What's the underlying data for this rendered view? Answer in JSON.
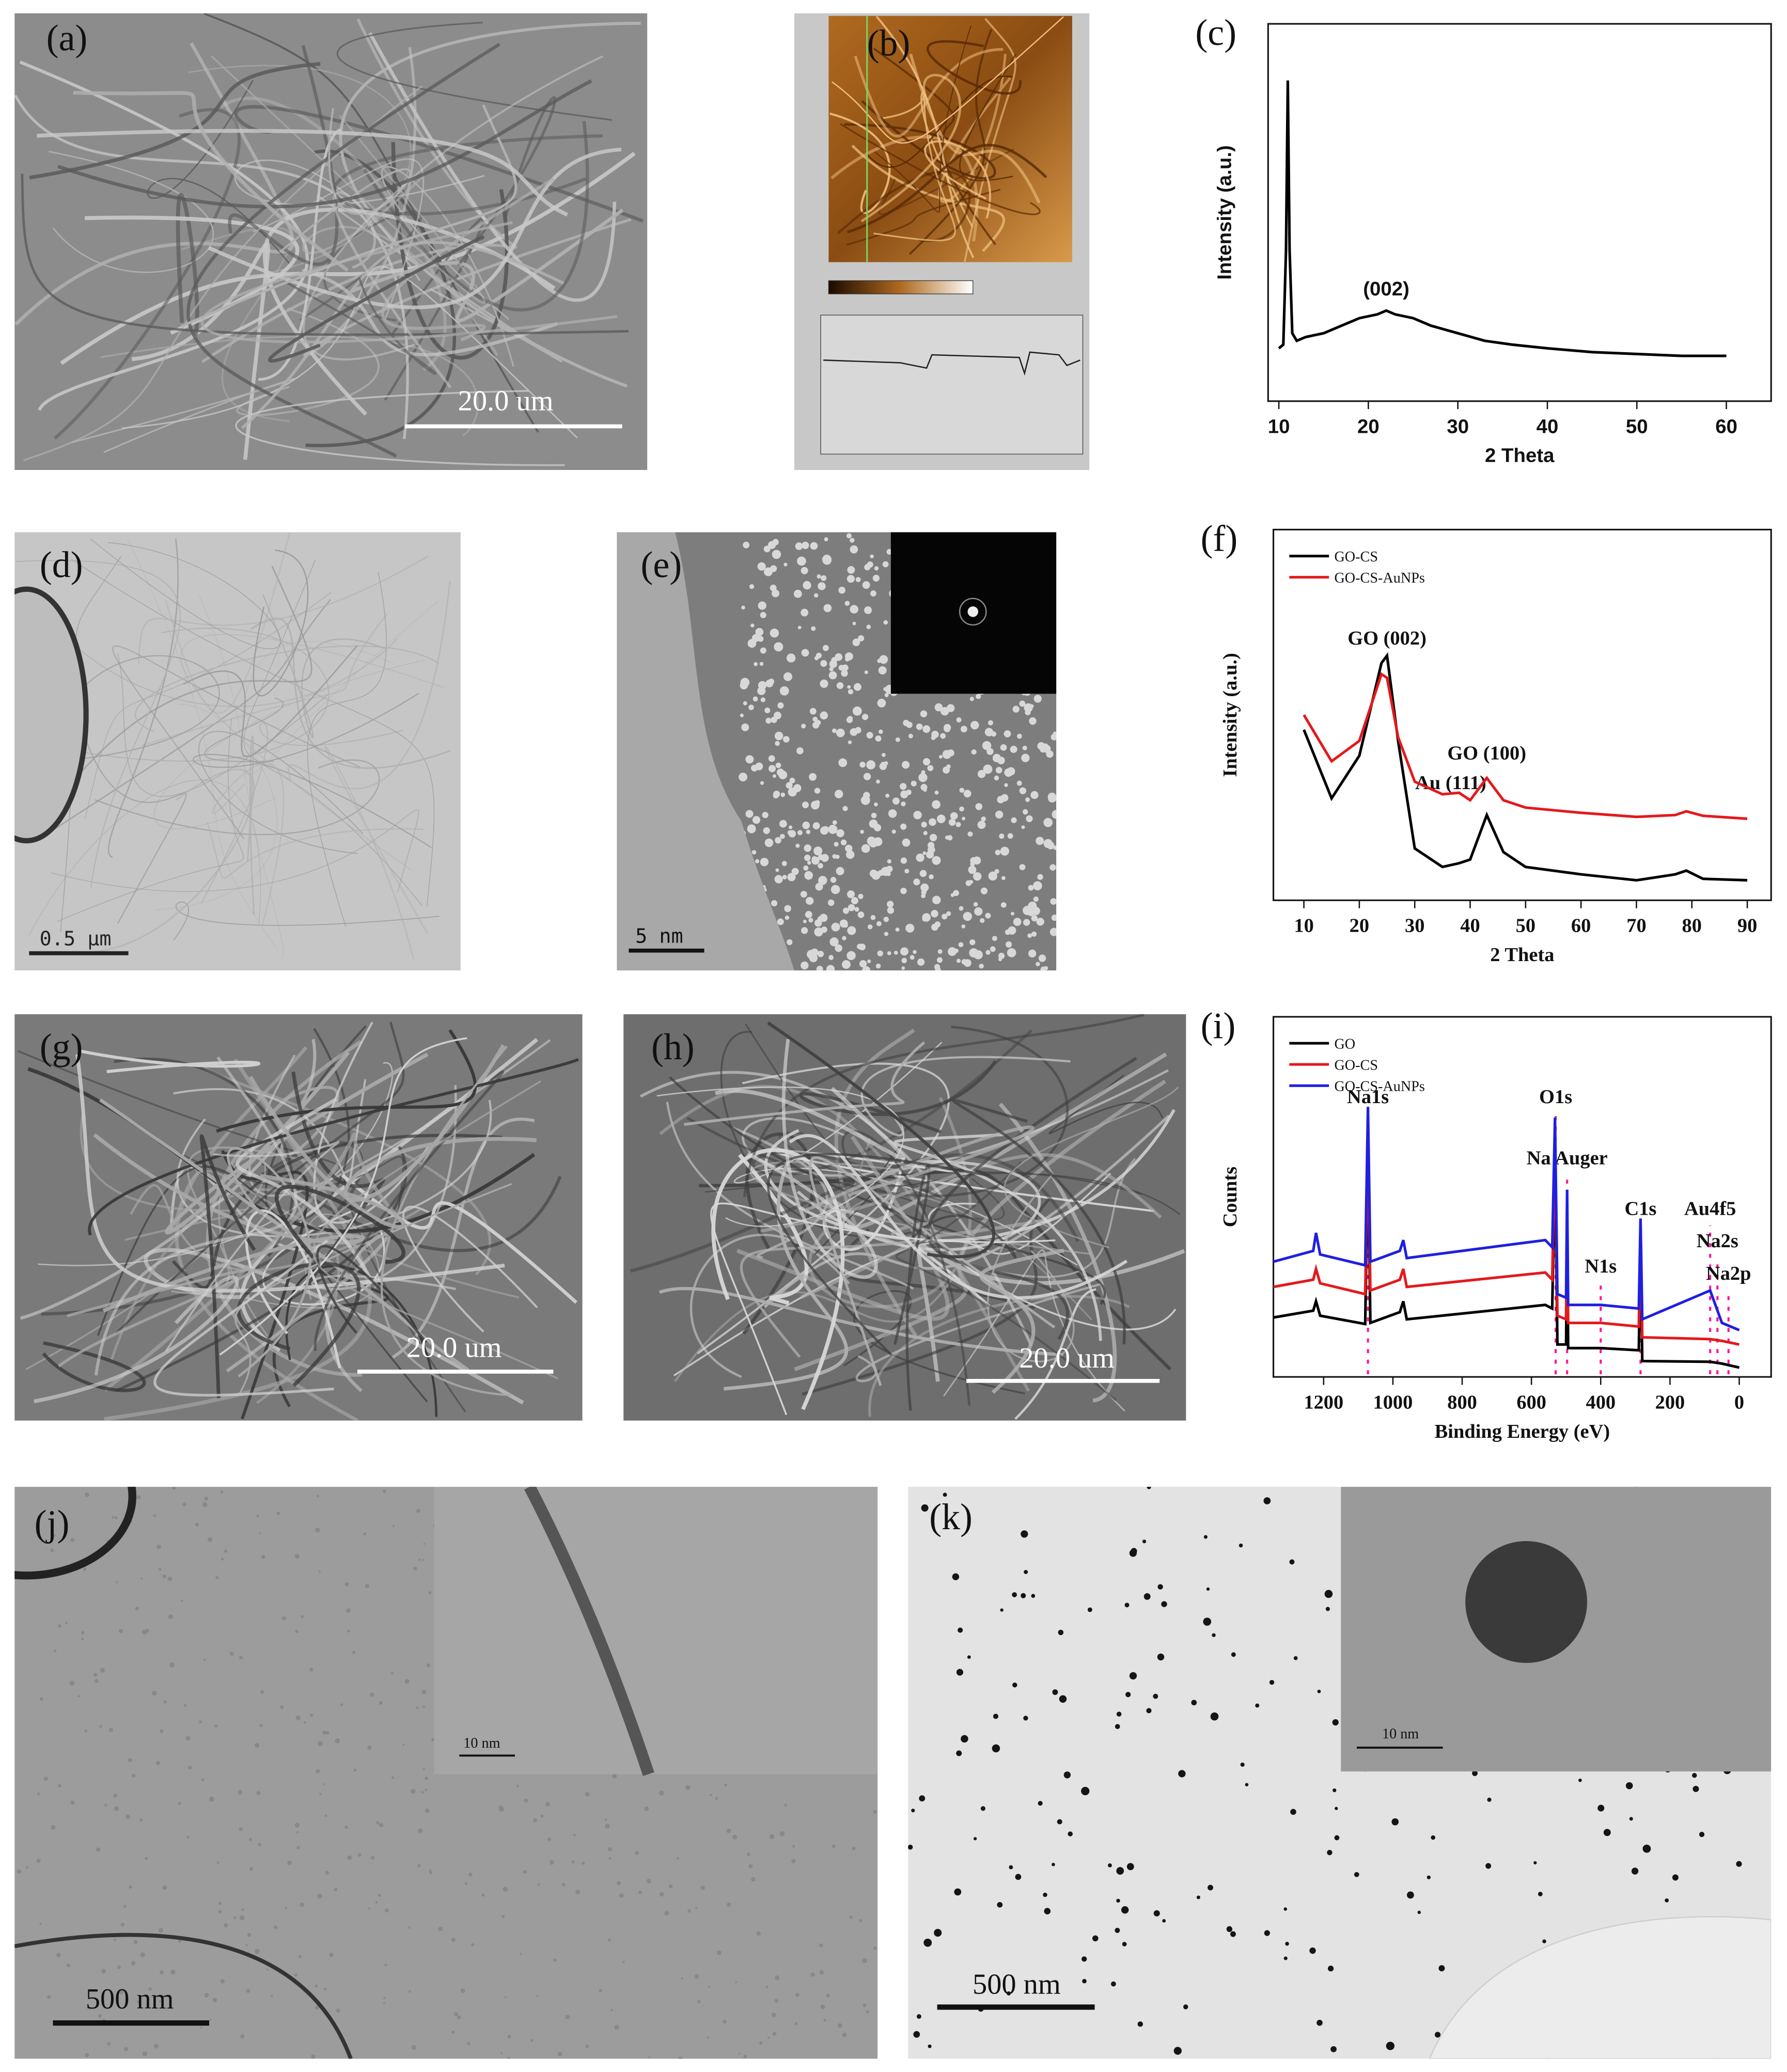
{
  "panels": {
    "a": {
      "label": "(a)",
      "scale_bar": "20.0 um"
    },
    "b": {
      "label": "(b)"
    },
    "d": {
      "label": "(d)",
      "scale_bar": "0.5 μm"
    },
    "e": {
      "label": "(e)",
      "scale_bar": "5 nm"
    },
    "g": {
      "label": "(g)",
      "scale_bar": "20.0 um"
    },
    "h": {
      "label": "(h)",
      "scale_bar": "20.0 um"
    },
    "j": {
      "label": "(j)",
      "scale_bar": "500 nm",
      "inset_scale_bar": "10 nm"
    },
    "k": {
      "label": "(k)",
      "scale_bar": "500 nm",
      "inset_scale_bar": "10 nm"
    }
  },
  "chart_data": [
    {
      "type": "line",
      "label": "(c)",
      "xlabel": "2 Theta",
      "ylabel": "Intensity (a.u.)",
      "color": "#000000",
      "x": [
        10,
        10.5,
        10.8,
        11,
        11.2,
        11.5,
        12,
        13,
        15,
        17,
        19,
        21,
        22,
        23,
        25,
        27,
        30,
        33,
        36,
        40,
        45,
        50,
        55,
        60
      ],
      "values": [
        14,
        15,
        40,
        85,
        40,
        18,
        16,
        17,
        18,
        20,
        22,
        23,
        24,
        23,
        22,
        20,
        18,
        16,
        15,
        14,
        13,
        12.5,
        12,
        12
      ],
      "xlim": [
        8.8,
        65
      ],
      "ylim": [
        0,
        100
      ],
      "xticks": [
        10,
        20,
        30,
        40,
        50,
        60
      ],
      "annotations": [
        {
          "text": "(002)",
          "x": 22,
          "y": 28
        }
      ]
    },
    {
      "type": "line",
      "label": "(f)",
      "xlabel": "2 Theta",
      "ylabel": "Intensity (a.u.)",
      "legend": "upper left",
      "x": [
        10,
        15,
        20,
        24,
        25,
        27,
        30,
        35,
        38,
        40,
        43,
        46,
        50,
        60,
        70,
        77,
        79,
        82,
        90
      ],
      "series": [
        {
          "name": "GO-CS",
          "color": "#000000",
          "values": [
            46,
            27.5,
            39,
            64,
            66,
            43,
            14,
            9,
            10,
            11,
            23,
            13,
            9,
            7,
            5.4,
            7,
            8,
            5.8,
            5.4
          ]
        },
        {
          "name": "GO-CS-AuNPs",
          "color": "#e31a1c",
          "values": [
            50,
            37.5,
            43,
            61,
            60,
            44,
            32,
            28.6,
            29,
            27,
            33,
            27,
            25,
            23.6,
            22.5,
            23,
            24,
            22.8,
            22
          ]
        }
      ],
      "xlim": [
        4.5,
        94.3
      ],
      "ylim": [
        0,
        100
      ],
      "xticks": [
        10,
        20,
        30,
        40,
        50,
        60,
        70,
        80,
        90
      ],
      "annotations": [
        {
          "text": "GO (002)",
          "x": 25,
          "y": 69
        },
        {
          "text": "Au (111)",
          "x": 36.5,
          "y": 30
        },
        {
          "text": "GO (100)",
          "x": 43,
          "y": 38
        }
      ]
    },
    {
      "type": "line",
      "label": "(i)",
      "xlabel": "Binding Energy (eV)",
      "ylabel": "Counts",
      "legend": "upper left",
      "x": [
        1345,
        1230,
        1222,
        1210,
        1080,
        1072,
        1065,
        980,
        970,
        960,
        560,
        540,
        532,
        525,
        500,
        497,
        494,
        400,
        290,
        285,
        280,
        84,
        50,
        0
      ],
      "series": [
        {
          "name": "GO",
          "color": "#000000",
          "values": [
            16.5,
            18.4,
            21,
            17,
            14.7,
            60,
            15,
            18,
            21,
            16,
            20,
            19,
            60,
            9,
            9,
            40,
            8,
            8,
            7.4,
            40,
            4.4,
            4.2,
            3.7,
            2.6
          ]
        },
        {
          "name": "GO-CS",
          "color": "#e31a1c",
          "values": [
            25,
            27,
            30,
            26,
            23,
            65,
            24,
            27,
            30,
            25,
            29,
            27,
            66,
            17,
            16,
            45,
            15,
            15,
            14,
            43,
            11,
            10.5,
            10,
            9
          ]
        },
        {
          "name": "GO-CS-AuNPs",
          "color": "#1f1fe0",
          "values": [
            32,
            35,
            40,
            34,
            31,
            75,
            32,
            35,
            38,
            33,
            38,
            36,
            72,
            23,
            22,
            52,
            20,
            20,
            19,
            44,
            16,
            24,
            15,
            13
          ]
        }
      ],
      "xlim": [
        1345,
        -92
      ],
      "ylim": [
        0,
        100
      ],
      "xticks": [
        1200,
        1000,
        800,
        600,
        400,
        200,
        0
      ],
      "annotations": [
        {
          "text": "Na1s",
          "x": 1072,
          "y": 76
        },
        {
          "text": "O1s",
          "x": 530,
          "y": 76
        },
        {
          "text": "Na Auger",
          "x": 497,
          "y": 59
        },
        {
          "text": "N1s",
          "x": 400,
          "y": 29
        },
        {
          "text": "C1s",
          "x": 285,
          "y": 45
        },
        {
          "text": "Au4f5",
          "x": 84,
          "y": 45
        },
        {
          "text": "Na2s",
          "x": 63,
          "y": 36
        },
        {
          "text": "Na2p",
          "x": 31,
          "y": 27
        }
      ]
    }
  ]
}
